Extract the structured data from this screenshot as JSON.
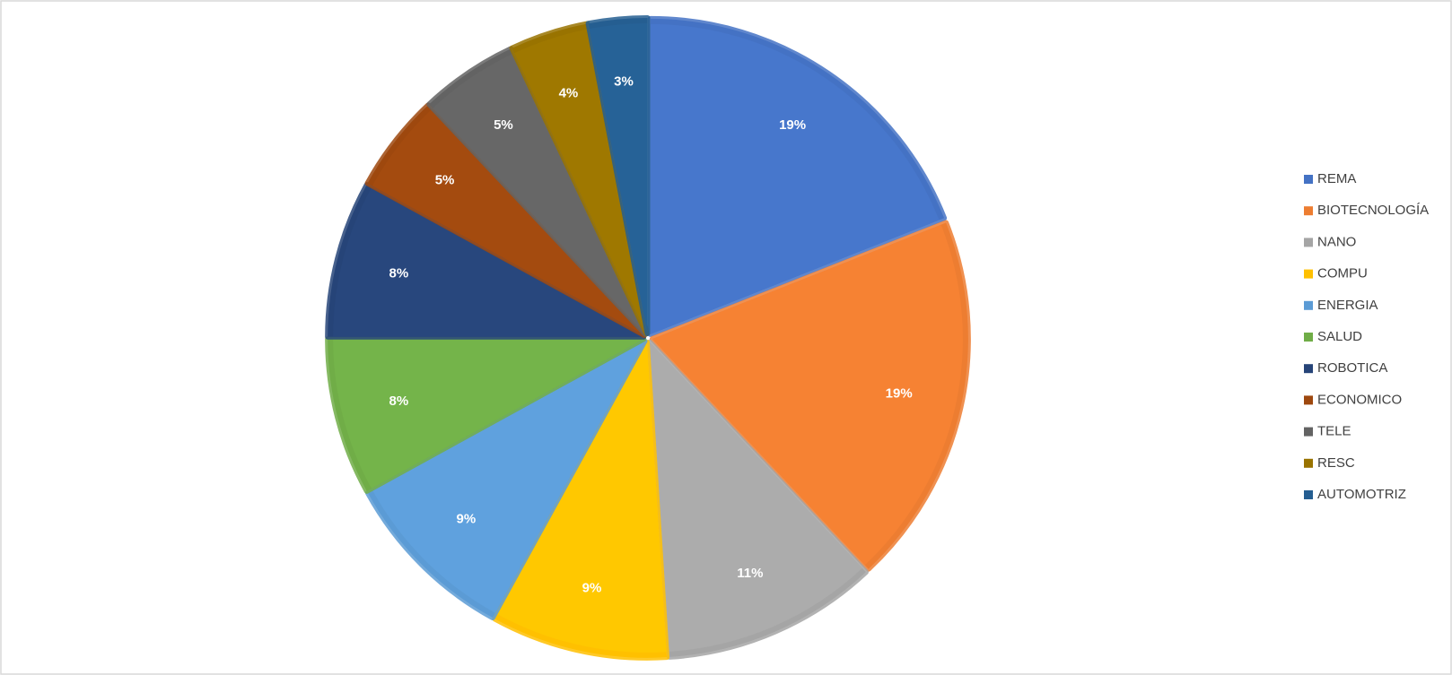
{
  "chart_data": {
    "type": "pie",
    "categories": [
      "REMA",
      "BIOTECNOLOGÍA",
      "NANO",
      "COMPU",
      "ENERGIA",
      "SALUD",
      "ROBOTICA",
      "ECONOMICO",
      "TELE",
      "RESC",
      "AUTOMOTRIZ"
    ],
    "values": [
      19,
      19,
      11,
      9,
      9,
      8,
      8,
      5,
      5,
      4,
      3
    ],
    "value_labels": [
      "19%",
      "19%",
      "11%",
      "9%",
      "9%",
      "8%",
      "8%",
      "5%",
      "5%",
      "4%",
      "3%"
    ],
    "colors": [
      "#4472c4",
      "#ed7d31",
      "#a5a5a5",
      "#ffc000",
      "#5b9bd5",
      "#70ad47",
      "#264478",
      "#9e480e",
      "#636363",
      "#997300",
      "#255e91"
    ],
    "legend": "right"
  }
}
